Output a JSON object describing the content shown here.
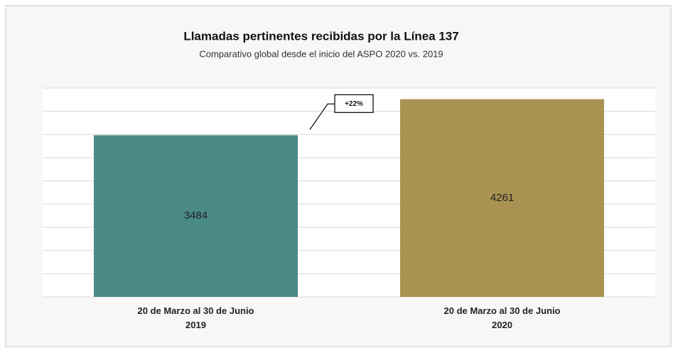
{
  "chart_data": {
    "type": "bar",
    "title": "Llamadas pertinentes recibidas por la Línea 137",
    "subtitle": "Comparativo global desde el inicio del ASPO 2020 vs. 2019",
    "categories": [
      "20 de Marzo al 30 de Junio\n2019",
      "20 de Marzo al 30 de Junio\n2020"
    ],
    "values": [
      3484,
      4261
    ],
    "colors": [
      "#4a8b88",
      "#a99352"
    ],
    "annotation": "+22%",
    "ylim": [
      0,
      4500
    ],
    "yticks": [
      0,
      500,
      1000,
      1500,
      2000,
      2500,
      3000,
      3500,
      4000,
      4500
    ],
    "grid": true
  }
}
